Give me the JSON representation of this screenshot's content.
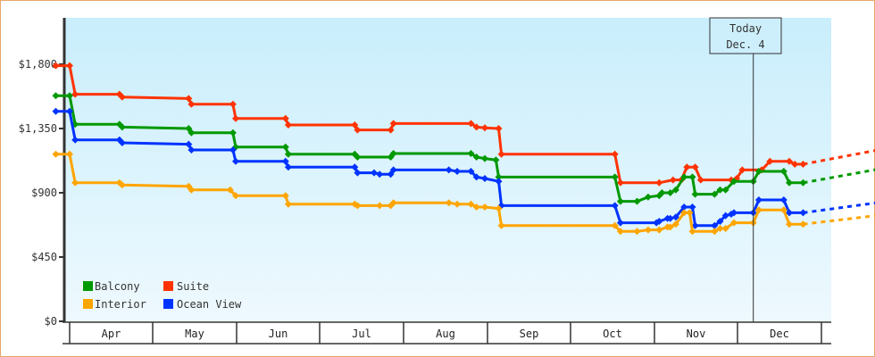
{
  "colors": {
    "frame_border": "#e8a868",
    "plot_bg_top": "#c9eefc",
    "plot_bg_bottom": "#eef9fe",
    "axis": "#333333",
    "balcony": "#009900",
    "suite": "#ff3300",
    "interior": "#ffa500",
    "ocean_view": "#0033ff"
  },
  "today_marker": {
    "line1": "Today",
    "line2": "Dec. 4"
  },
  "legend": [
    {
      "key": "balcony",
      "label": "Balcony"
    },
    {
      "key": "suite",
      "label": "Suite"
    },
    {
      "key": "interior",
      "label": "Interior"
    },
    {
      "key": "ocean_view",
      "label": "Ocean View"
    }
  ],
  "chart_data": {
    "type": "line",
    "title": "",
    "xlabel": "",
    "ylabel": "",
    "ylim": [
      0,
      2125
    ],
    "y_ticks": [
      {
        "value": 0,
        "label": "$0"
      },
      {
        "value": 450,
        "label": "$450"
      },
      {
        "value": 900,
        "label": "$900"
      },
      {
        "value": 1350,
        "label": "$1,350"
      },
      {
        "value": 1800,
        "label": "$1,800"
      }
    ],
    "x_categories": [
      "Apr",
      "May",
      "Jun",
      "Jul",
      "Aug",
      "Sep",
      "Oct",
      "Nov",
      "Dec"
    ],
    "x_range_days": [
      -6,
      264
    ],
    "today_day": 247,
    "grid": false,
    "legend_position": "bottom-left inside",
    "step_style": "step price history with diamond markers; dashed projection after today",
    "series": [
      {
        "key": "suite",
        "name": "Suite",
        "points": [
          [
            -5,
            1790
          ],
          [
            0,
            1790
          ],
          [
            2,
            1590
          ],
          [
            18,
            1590
          ],
          [
            19,
            1570
          ],
          [
            43,
            1560
          ],
          [
            44,
            1520
          ],
          [
            59,
            1520
          ],
          [
            60,
            1420
          ],
          [
            78,
            1420
          ],
          [
            79,
            1375
          ],
          [
            103,
            1375
          ],
          [
            104,
            1340
          ],
          [
            116,
            1340
          ],
          [
            117,
            1385
          ],
          [
            145,
            1385
          ],
          [
            147,
            1360
          ],
          [
            150,
            1355
          ],
          [
            155,
            1350
          ],
          [
            156,
            1170
          ],
          [
            197,
            1170
          ],
          [
            199,
            970
          ],
          [
            213,
            970
          ],
          [
            218,
            990
          ],
          [
            221,
            990
          ],
          [
            223,
            1080
          ],
          [
            226,
            1080
          ],
          [
            228,
            990
          ],
          [
            239,
            990
          ],
          [
            241,
            1000
          ],
          [
            243,
            1060
          ],
          [
            250,
            1060
          ],
          [
            253,
            1120
          ],
          [
            260,
            1120
          ],
          [
            262,
            1100
          ],
          [
            265,
            1100
          ]
        ],
        "projection": [
          [
            265,
            1100
          ],
          [
            322,
            1310
          ]
        ]
      },
      {
        "key": "balcony",
        "name": "Balcony",
        "points": [
          [
            -5,
            1580
          ],
          [
            0,
            1580
          ],
          [
            2,
            1380
          ],
          [
            18,
            1380
          ],
          [
            19,
            1360
          ],
          [
            43,
            1350
          ],
          [
            44,
            1320
          ],
          [
            59,
            1320
          ],
          [
            60,
            1220
          ],
          [
            78,
            1220
          ],
          [
            79,
            1170
          ],
          [
            103,
            1170
          ],
          [
            104,
            1150
          ],
          [
            116,
            1150
          ],
          [
            117,
            1175
          ],
          [
            145,
            1175
          ],
          [
            147,
            1150
          ],
          [
            150,
            1140
          ],
          [
            154,
            1130
          ],
          [
            155,
            1010
          ],
          [
            197,
            1010
          ],
          [
            199,
            840
          ],
          [
            205,
            840
          ],
          [
            209,
            870
          ],
          [
            213,
            880
          ],
          [
            214,
            900
          ],
          [
            217,
            900
          ],
          [
            219,
            920
          ],
          [
            222,
            1010
          ],
          [
            225,
            1010
          ],
          [
            226,
            890
          ],
          [
            233,
            890
          ],
          [
            235,
            920
          ],
          [
            237,
            920
          ],
          [
            240,
            980
          ],
          [
            247,
            980
          ],
          [
            249,
            1050
          ],
          [
            258,
            1050
          ],
          [
            260,
            970
          ],
          [
            265,
            970
          ]
        ],
        "projection": [
          [
            265,
            970
          ],
          [
            322,
            1170
          ]
        ]
      },
      {
        "key": "ocean_view",
        "name": "Ocean View",
        "points": [
          [
            -5,
            1470
          ],
          [
            0,
            1470
          ],
          [
            2,
            1270
          ],
          [
            18,
            1270
          ],
          [
            19,
            1250
          ],
          [
            43,
            1240
          ],
          [
            44,
            1200
          ],
          [
            59,
            1200
          ],
          [
            60,
            1120
          ],
          [
            78,
            1120
          ],
          [
            79,
            1080
          ],
          [
            103,
            1080
          ],
          [
            104,
            1040
          ],
          [
            110,
            1040
          ],
          [
            112,
            1030
          ],
          [
            116,
            1030
          ],
          [
            117,
            1060
          ],
          [
            137,
            1060
          ],
          [
            140,
            1050
          ],
          [
            145,
            1050
          ],
          [
            147,
            1010
          ],
          [
            150,
            1000
          ],
          [
            155,
            980
          ],
          [
            156,
            810
          ],
          [
            197,
            810
          ],
          [
            199,
            690
          ],
          [
            212,
            690
          ],
          [
            213,
            700
          ],
          [
            216,
            720
          ],
          [
            217,
            720
          ],
          [
            219,
            730
          ],
          [
            222,
            800
          ],
          [
            225,
            800
          ],
          [
            226,
            670
          ],
          [
            233,
            670
          ],
          [
            235,
            700
          ],
          [
            237,
            740
          ],
          [
            239,
            750
          ],
          [
            240,
            760
          ],
          [
            247,
            760
          ],
          [
            249,
            850
          ],
          [
            258,
            850
          ],
          [
            260,
            760
          ],
          [
            265,
            760
          ]
        ],
        "projection": [
          [
            265,
            760
          ],
          [
            322,
            910
          ]
        ]
      },
      {
        "key": "interior",
        "name": "Interior",
        "points": [
          [
            -5,
            1170
          ],
          [
            0,
            1170
          ],
          [
            2,
            970
          ],
          [
            18,
            970
          ],
          [
            19,
            955
          ],
          [
            43,
            945
          ],
          [
            44,
            920
          ],
          [
            58,
            920
          ],
          [
            60,
            880
          ],
          [
            78,
            880
          ],
          [
            79,
            820
          ],
          [
            103,
            820
          ],
          [
            104,
            810
          ],
          [
            112,
            810
          ],
          [
            116,
            810
          ],
          [
            117,
            830
          ],
          [
            137,
            830
          ],
          [
            140,
            820
          ],
          [
            145,
            820
          ],
          [
            147,
            800
          ],
          [
            150,
            800
          ],
          [
            155,
            790
          ],
          [
            156,
            670
          ],
          [
            197,
            670
          ],
          [
            199,
            630
          ],
          [
            205,
            630
          ],
          [
            209,
            640
          ],
          [
            213,
            640
          ],
          [
            216,
            660
          ],
          [
            217,
            660
          ],
          [
            219,
            680
          ],
          [
            222,
            760
          ],
          [
            224,
            760
          ],
          [
            225,
            630
          ],
          [
            233,
            630
          ],
          [
            235,
            650
          ],
          [
            237,
            650
          ],
          [
            240,
            690
          ],
          [
            247,
            690
          ],
          [
            249,
            780
          ],
          [
            258,
            780
          ],
          [
            260,
            680
          ],
          [
            265,
            680
          ]
        ],
        "projection": [
          [
            265,
            680
          ],
          [
            322,
            810
          ]
        ]
      }
    ]
  }
}
